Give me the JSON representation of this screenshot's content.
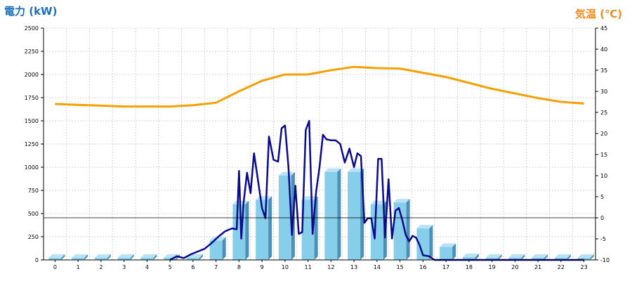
{
  "chart_data": {
    "type": "bar",
    "ylabel_left": "電力 (kW)",
    "ylabel_right": "気温 (℃)",
    "categories": [
      "0",
      "1",
      "2",
      "3",
      "4",
      "5",
      "6",
      "7",
      "8",
      "9",
      "10",
      "11",
      "12",
      "13",
      "14",
      "15",
      "16",
      "17",
      "18",
      "19",
      "20",
      "21",
      "22",
      "23"
    ],
    "y_left": {
      "min": 0,
      "max": 2500,
      "ticks": [
        "0",
        "250",
        "500",
        "750",
        "1000",
        "1250",
        "1500",
        "1750",
        "2000",
        "2250",
        "2500"
      ]
    },
    "y_right": {
      "min": -10,
      "max": 45,
      "ticks": [
        "-10",
        "-5",
        "0",
        "5",
        "10",
        "15",
        "20",
        "25",
        "30",
        "35",
        "40",
        "45"
      ]
    },
    "grid": true,
    "colors": {
      "bar_front": "#87ceeb",
      "bar_side": "#4a90b8",
      "bar_top": "#b8e2f5",
      "power_line": "#0a0a8c",
      "temperature_line": "#f5a000",
      "grid": "#c8c8c8"
    },
    "series": [
      {
        "kind": "bar",
        "axis": "left",
        "values": [
          0,
          0,
          0,
          0,
          0,
          10,
          10,
          210,
          600,
          650,
          910,
          650,
          950,
          950,
          600,
          620,
          340,
          140,
          30,
          0,
          0,
          0,
          0,
          0
        ]
      },
      {
        "kind": "line",
        "axis": "left",
        "x": [
          5.0,
          5.3,
          5.6,
          5.9,
          6.2,
          6.5,
          6.8,
          7.1,
          7.4,
          7.7,
          7.9,
          8.0,
          8.1,
          8.2,
          8.35,
          8.5,
          8.65,
          8.8,
          9.0,
          9.15,
          9.3,
          9.5,
          9.7,
          9.85,
          10.0,
          10.15,
          10.3,
          10.45,
          10.6,
          10.75,
          10.9,
          11.05,
          11.2,
          11.35,
          11.5,
          11.65,
          11.8,
          12.0,
          12.2,
          12.4,
          12.6,
          12.8,
          13.0,
          13.15,
          13.3,
          13.45,
          13.6,
          13.75,
          13.9,
          14.05,
          14.2,
          14.35,
          14.5,
          14.65,
          14.8,
          14.95,
          15.1,
          15.25,
          15.4,
          15.55,
          15.7,
          15.85,
          16.0,
          16.25,
          16.5,
          16.75,
          17.0,
          17.3,
          17.6,
          17.85,
          18.0,
          18.5,
          19.0,
          20.0,
          21.0,
          22.0,
          23.0
        ],
        "y": [
          0,
          40,
          20,
          60,
          90,
          120,
          180,
          250,
          310,
          340,
          330,
          960,
          230,
          620,
          940,
          720,
          1150,
          900,
          560,
          450,
          1330,
          1080,
          1060,
          1420,
          1450,
          1000,
          270,
          800,
          280,
          300,
          1400,
          1500,
          280,
          730,
          1000,
          1350,
          1300,
          1290,
          1290,
          1250,
          1050,
          1200,
          1000,
          1150,
          1120,
          400,
          450,
          450,
          230,
          1090,
          1090,
          240,
          870,
          230,
          530,
          560,
          430,
          270,
          200,
          260,
          240,
          160,
          50,
          40,
          0,
          0,
          0,
          0,
          0,
          0,
          0,
          0,
          0,
          0,
          0,
          0,
          0
        ]
      },
      {
        "kind": "line",
        "axis": "right",
        "x": [
          0,
          1,
          2,
          3,
          4,
          5,
          6,
          7,
          8,
          9,
          10,
          11,
          12,
          13,
          14,
          15,
          16,
          17,
          18,
          19,
          20,
          21,
          22,
          23
        ],
        "y": [
          27.0,
          26.8,
          26.6,
          26.4,
          26.4,
          26.4,
          26.7,
          27.3,
          30.0,
          32.5,
          34.0,
          34.0,
          35.0,
          35.8,
          35.5,
          35.4,
          34.4,
          33.4,
          32.0,
          30.6,
          29.5,
          28.4,
          27.5,
          27.1
        ]
      }
    ]
  }
}
